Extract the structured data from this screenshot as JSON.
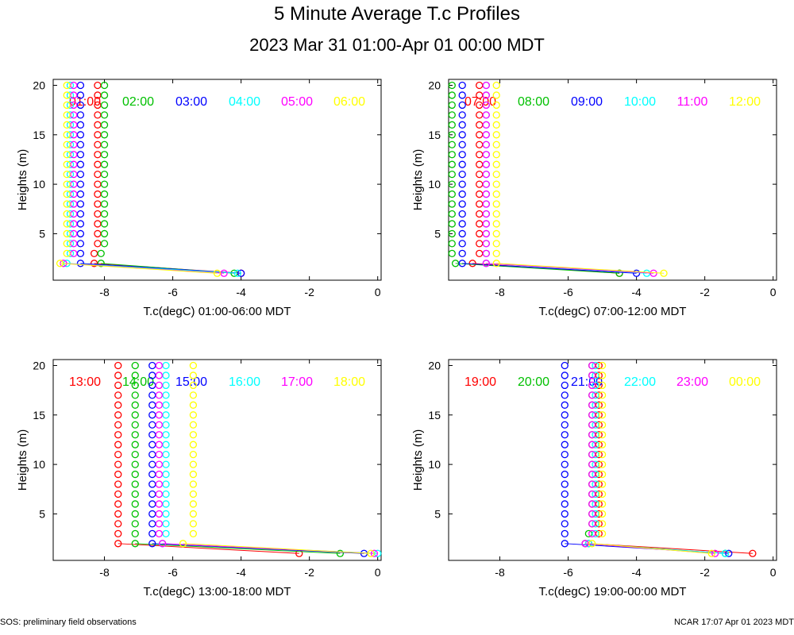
{
  "title": "5 Minute Average T.c Profiles",
  "subtitle": "2023 Mar 31 01:00-Apr 01 00:00 MDT",
  "footer": {
    "left": "SOS: preliminary field observations",
    "right": "NCAR 17:07 Apr 01 2023 MDT"
  },
  "colors": [
    "#ff0000",
    "#00c000",
    "#0000ff",
    "#00ffff",
    "#ff00ff",
    "#ffff00"
  ],
  "chart_data": [
    {
      "type": "scatter",
      "xlabel": "T.c(degC) 01:00-06:00 MDT",
      "ylabel": "Heights (m)",
      "xlim": [
        -9.5,
        0.1
      ],
      "ylim": [
        0.3,
        20.6
      ],
      "xticks": [
        -8,
        -6,
        -4,
        -2,
        0
      ],
      "yticks": [
        5,
        10,
        15,
        20
      ],
      "series": [
        {
          "name": "01:00",
          "near_surface": [
            [
              -4.0,
              1
            ],
            [
              -8.3,
              2
            ],
            [
              -8.3,
              3
            ]
          ],
          "upper": [
            [
              -8.2,
              4
            ],
            [
              -8.2,
              20
            ]
          ]
        },
        {
          "name": "02:00",
          "near_surface": [
            [
              -4.2,
              1
            ],
            [
              -8.1,
              2
            ],
            [
              -8.1,
              3
            ]
          ],
          "upper": [
            [
              -8.0,
              4
            ],
            [
              -8.0,
              20
            ]
          ]
        },
        {
          "name": "03:00",
          "near_surface": [
            [
              -4.0,
              1
            ],
            [
              -8.7,
              2
            ],
            [
              -8.7,
              3
            ]
          ],
          "upper": [
            [
              -8.7,
              4
            ],
            [
              -8.7,
              20
            ]
          ]
        },
        {
          "name": "04:00",
          "near_surface": [
            [
              -4.1,
              1
            ],
            [
              -9.1,
              2
            ],
            [
              -9.0,
              3
            ]
          ],
          "upper": [
            [
              -9.0,
              4
            ],
            [
              -9.0,
              20
            ]
          ]
        },
        {
          "name": "05:00",
          "near_surface": [
            [
              -4.5,
              1
            ],
            [
              -9.2,
              2
            ],
            [
              -8.9,
              3
            ]
          ],
          "upper": [
            [
              -8.9,
              4
            ],
            [
              -8.9,
              20
            ]
          ]
        },
        {
          "name": "06:00",
          "near_surface": [
            [
              -4.7,
              1
            ],
            [
              -9.3,
              2
            ],
            [
              -9.1,
              3
            ]
          ],
          "upper": [
            [
              -9.1,
              4
            ],
            [
              -9.1,
              20
            ]
          ]
        }
      ]
    },
    {
      "type": "scatter",
      "xlabel": "T.c(degC) 07:00-12:00 MDT",
      "ylabel": "Heights (m)",
      "xlim": [
        -9.5,
        0.1
      ],
      "ylim": [
        0.3,
        20.6
      ],
      "xticks": [
        -8,
        -6,
        -4,
        -2,
        0
      ],
      "yticks": [
        5,
        10,
        15,
        20
      ],
      "series": [
        {
          "name": "07:00",
          "near_surface": [
            [
              -4.5,
              1
            ],
            [
              -8.8,
              2
            ],
            [
              -8.6,
              3
            ]
          ],
          "upper": [
            [
              -8.6,
              4
            ],
            [
              -8.6,
              20
            ]
          ]
        },
        {
          "name": "08:00",
          "near_surface": [
            [
              -4.5,
              1
            ],
            [
              -9.3,
              2
            ],
            [
              -9.4,
              3
            ]
          ],
          "upper": [
            [
              -9.4,
              4
            ],
            [
              -9.4,
              20
            ]
          ]
        },
        {
          "name": "09:00",
          "near_surface": [
            [
              -4.0,
              1
            ],
            [
              -9.1,
              2
            ],
            [
              -9.1,
              3
            ]
          ],
          "upper": [
            [
              -9.1,
              4
            ],
            [
              -9.1,
              20
            ]
          ]
        },
        {
          "name": "10:00",
          "near_surface": [
            [
              -3.7,
              1
            ],
            [
              -8.4,
              2
            ],
            [
              -8.4,
              3
            ]
          ],
          "upper": [
            [
              -8.4,
              4
            ],
            [
              -8.4,
              20
            ]
          ]
        },
        {
          "name": "11:00",
          "near_surface": [
            [
              -3.5,
              1
            ],
            [
              -8.4,
              2
            ],
            [
              -8.4,
              3
            ]
          ],
          "upper": [
            [
              -8.4,
              4
            ],
            [
              -8.4,
              20
            ]
          ]
        },
        {
          "name": "12:00",
          "near_surface": [
            [
              -3.2,
              1
            ],
            [
              -8.1,
              2
            ],
            [
              -8.1,
              3
            ]
          ],
          "upper": [
            [
              -8.1,
              4
            ],
            [
              -8.1,
              20
            ]
          ]
        }
      ]
    },
    {
      "type": "scatter",
      "xlabel": "T.c(degC) 13:00-18:00 MDT",
      "ylabel": "Heights (m)",
      "xlim": [
        -9.5,
        0.1
      ],
      "ylim": [
        0.3,
        20.6
      ],
      "xticks": [
        -8,
        -6,
        -4,
        -2,
        0
      ],
      "yticks": [
        5,
        10,
        15,
        20
      ],
      "series": [
        {
          "name": "13:00",
          "near_surface": [
            [
              -2.3,
              1
            ],
            [
              -7.6,
              2
            ],
            [
              -7.6,
              3
            ]
          ],
          "upper": [
            [
              -7.6,
              4
            ],
            [
              -7.6,
              20
            ]
          ]
        },
        {
          "name": "14:00",
          "near_surface": [
            [
              -1.1,
              1
            ],
            [
              -7.1,
              2
            ],
            [
              -7.1,
              3
            ]
          ],
          "upper": [
            [
              -7.1,
              4
            ],
            [
              -7.1,
              20
            ]
          ]
        },
        {
          "name": "15:00",
          "near_surface": [
            [
              -0.4,
              1
            ],
            [
              -6.6,
              2
            ],
            [
              -6.6,
              3
            ]
          ],
          "upper": [
            [
              -6.6,
              4
            ],
            [
              -6.6,
              20
            ]
          ]
        },
        {
          "name": "16:00",
          "near_surface": [
            [
              0.0,
              1
            ],
            [
              -6.3,
              2
            ],
            [
              -6.2,
              3
            ]
          ],
          "upper": [
            [
              -6.2,
              4
            ],
            [
              -6.2,
              20
            ]
          ]
        },
        {
          "name": "17:00",
          "near_surface": [
            [
              -0.1,
              1
            ],
            [
              -6.3,
              2
            ],
            [
              -6.4,
              3
            ]
          ],
          "upper": [
            [
              -6.4,
              4
            ],
            [
              -6.4,
              20
            ]
          ]
        },
        {
          "name": "18:00",
          "near_surface": [
            [
              -0.2,
              1
            ],
            [
              -5.7,
              2
            ],
            [
              -5.4,
              3
            ]
          ],
          "upper": [
            [
              -5.4,
              4
            ],
            [
              -5.4,
              20
            ]
          ]
        }
      ]
    },
    {
      "type": "scatter",
      "xlabel": "T.c(degC) 19:00-00:00 MDT",
      "ylabel": "Heights (m)",
      "xlim": [
        -9.5,
        0.1
      ],
      "ylim": [
        0.3,
        20.6
      ],
      "xticks": [
        -8,
        -6,
        -4,
        -2,
        0
      ],
      "yticks": [
        5,
        10,
        15,
        20
      ],
      "series": [
        {
          "name": "19:00",
          "near_surface": [
            [
              -0.6,
              1
            ],
            [
              -5.4,
              2
            ],
            [
              -5.1,
              3
            ]
          ],
          "upper": [
            [
              -5.1,
              4
            ],
            [
              -5.1,
              20
            ]
          ]
        },
        {
          "name": "20:00",
          "near_surface": [
            [
              -1.4,
              1
            ],
            [
              -5.5,
              2
            ],
            [
              -5.4,
              3
            ]
          ],
          "upper": [
            [
              -5.3,
              4
            ],
            [
              -5.3,
              20
            ]
          ]
        },
        {
          "name": "21:00",
          "near_surface": [
            [
              -1.3,
              1
            ],
            [
              -6.1,
              2
            ],
            [
              -6.1,
              3
            ]
          ],
          "upper": [
            [
              -6.1,
              4
            ],
            [
              -6.1,
              20
            ]
          ]
        },
        {
          "name": "22:00",
          "near_surface": [
            [
              -1.4,
              1
            ],
            [
              -5.4,
              2
            ],
            [
              -5.2,
              3
            ]
          ],
          "upper": [
            [
              -5.2,
              4
            ],
            [
              -5.2,
              20
            ]
          ]
        },
        {
          "name": "23:00",
          "near_surface": [
            [
              -1.7,
              1
            ],
            [
              -5.5,
              2
            ],
            [
              -5.3,
              3
            ]
          ],
          "upper": [
            [
              -5.3,
              4
            ],
            [
              -5.3,
              20
            ]
          ]
        },
        {
          "name": "00:00",
          "near_surface": [
            [
              -1.8,
              1
            ],
            [
              -5.3,
              2
            ],
            [
              -5.0,
              3
            ]
          ],
          "upper": [
            [
              -5.0,
              4
            ],
            [
              -5.0,
              20
            ]
          ]
        }
      ]
    }
  ]
}
